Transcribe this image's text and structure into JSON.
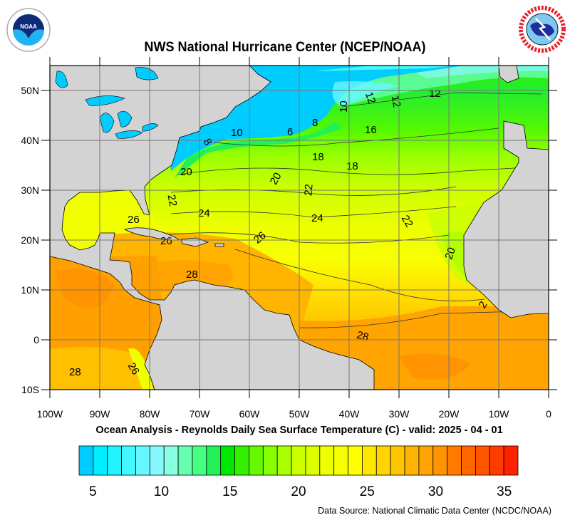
{
  "header": {
    "title": "NWS National Hurricane Center (NCEP/NOAA)",
    "left_logo": "NOAA",
    "right_logo": "NATIONAL WEATHER SERVICE"
  },
  "map": {
    "subtitle": "Ocean Analysis - Reynolds Daily Sea Surface Temperature (C) - valid: 2025 - 04 - 01",
    "lon_labels": [
      "100W",
      "90W",
      "80W",
      "70W",
      "60W",
      "50W",
      "40W",
      "30W",
      "20W",
      "10W",
      "0"
    ],
    "lat_labels": [
      "50N",
      "40N",
      "30N",
      "20N",
      "10N",
      "0",
      "10S"
    ],
    "contour_labels": [
      "12",
      "12",
      "12",
      "10",
      "16",
      "8",
      "6",
      "10",
      "8",
      "18",
      "18",
      "20",
      "20",
      "22",
      "22",
      "24",
      "24",
      "22",
      "26",
      "26",
      "26",
      "28",
      "20",
      "2",
      "28",
      "28",
      "26"
    ],
    "land_color": "#d3d3d3",
    "lake_color": "#00ccff"
  },
  "colorbar": {
    "min": 4,
    "max": 36,
    "colors": [
      "#00ccff",
      "#00eeff",
      "#22f4ff",
      "#44f8ff",
      "#66f8ff",
      "#88f8ff",
      "#88ffe0",
      "#66ffb0",
      "#44ff80",
      "#22f058",
      "#00e800",
      "#33f000",
      "#66f800",
      "#88ff00",
      "#aaff00",
      "#ccff00",
      "#ddff00",
      "#eeff00",
      "#f4ff00",
      "#ffff00",
      "#ffe800",
      "#ffd400",
      "#ffc400",
      "#ffb400",
      "#ffa400",
      "#ff9400",
      "#ff7c00",
      "#ff6800",
      "#ff5400",
      "#ff3c00",
      "#ff2200"
    ],
    "labels": [
      "5",
      "10",
      "15",
      "20",
      "25",
      "30",
      "35"
    ],
    "label_values": [
      5,
      10,
      15,
      20,
      25,
      30,
      35
    ]
  },
  "footer": {
    "source": "Data Source: National Climatic Data Center (NCDC/NOAA)"
  }
}
